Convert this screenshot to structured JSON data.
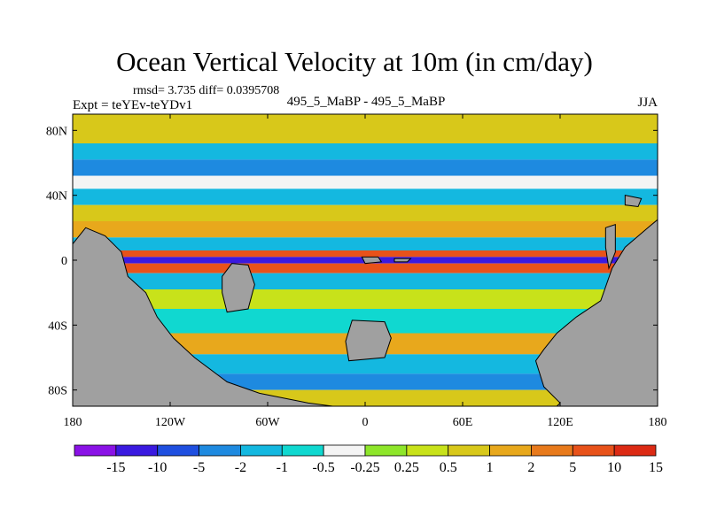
{
  "title": "Ocean Vertical Velocity at 10m (in cm/day)",
  "stats": "rmsd= 3.735 diff= 0.0395708",
  "experiment": "Expt = teYEv-teYDv1",
  "center_label": "495_5_MaBP - 495_5_MaBP",
  "season": "JJA",
  "colors": {
    "land": "#a0a0a0",
    "levels": [
      "#8a12e6",
      "#3a1ae0",
      "#1f4fe0",
      "#1e8ae0",
      "#14b8e0",
      "#10d8d0",
      "#f4f4f4",
      "#8ee62a",
      "#c8e21a",
      "#d8c81a",
      "#e8a81c",
      "#e87a1c",
      "#e8521a",
      "#dc2a14"
    ]
  },
  "chart_data": {
    "type": "heatmap",
    "projection": "cylindrical-equidistant",
    "xlim": [
      -180,
      180
    ],
    "ylim": [
      -90,
      90
    ],
    "x_ticks": [
      {
        "value": -180,
        "label": "180"
      },
      {
        "value": -120,
        "label": "120W"
      },
      {
        "value": -60,
        "label": "60W"
      },
      {
        "value": 0,
        "label": "0"
      },
      {
        "value": 60,
        "label": "60E"
      },
      {
        "value": 120,
        "label": "120E"
      },
      {
        "value": 180,
        "label": "180"
      }
    ],
    "y_ticks": [
      {
        "value": 80,
        "label": "80N"
      },
      {
        "value": 40,
        "label": "40N"
      },
      {
        "value": 0,
        "label": "0"
      },
      {
        "value": -40,
        "label": "40S"
      },
      {
        "value": -80,
        "label": "80S"
      }
    ],
    "colorbar": {
      "levels": [
        "-15",
        "-10",
        "-5",
        "-2",
        "-1",
        "-0.5",
        "-0.25",
        "0.25",
        "0.5",
        "1",
        "2",
        "5",
        "10",
        "15"
      ]
    },
    "bands": [
      {
        "lat": [
          72,
          90
        ],
        "value": 0.7
      },
      {
        "lat": [
          62,
          72
        ],
        "value": -1.5
      },
      {
        "lat": [
          52,
          62
        ],
        "value": -3
      },
      {
        "lat": [
          44,
          52
        ],
        "value": -0.3
      },
      {
        "lat": [
          34,
          44
        ],
        "value": -1.5
      },
      {
        "lat": [
          24,
          34
        ],
        "value": 0.8
      },
      {
        "lat": [
          14,
          24
        ],
        "value": 1.5
      },
      {
        "lat": [
          6,
          14
        ],
        "value": -2
      },
      {
        "lat": [
          2,
          6
        ],
        "value": 6
      },
      {
        "lat": [
          -2,
          2
        ],
        "value": -12
      },
      {
        "lat": [
          -8,
          -2
        ],
        "value": 8
      },
      {
        "lat": [
          -18,
          -8
        ],
        "value": -2
      },
      {
        "lat": [
          -30,
          -18
        ],
        "value": 0.3
      },
      {
        "lat": [
          -45,
          -30
        ],
        "value": -0.7
      },
      {
        "lat": [
          -58,
          -45
        ],
        "value": 1.2
      },
      {
        "lat": [
          -70,
          -58
        ],
        "value": -1.5
      },
      {
        "lat": [
          -80,
          -70
        ],
        "value": -3
      },
      {
        "lat": [
          -90,
          -80
        ],
        "value": 0.5
      }
    ],
    "land": [
      {
        "name": "west-continent",
        "points": [
          [
            -180,
            -90
          ],
          [
            -180,
            10
          ],
          [
            -172,
            20
          ],
          [
            -160,
            15
          ],
          [
            -150,
            5
          ],
          [
            -146,
            -10
          ],
          [
            -135,
            -20
          ],
          [
            -128,
            -35
          ],
          [
            -118,
            -48
          ],
          [
            -105,
            -60
          ],
          [
            -85,
            -75
          ],
          [
            -65,
            -82
          ],
          [
            -35,
            -88
          ],
          [
            -20,
            -90
          ]
        ]
      },
      {
        "name": "east-continent",
        "points": [
          [
            180,
            -90
          ],
          [
            180,
            25
          ],
          [
            174,
            20
          ],
          [
            160,
            8
          ],
          [
            152,
            -5
          ],
          [
            145,
            -25
          ],
          [
            130,
            -35
          ],
          [
            118,
            -45
          ],
          [
            110,
            -55
          ],
          [
            105,
            -62
          ],
          [
            110,
            -78
          ],
          [
            120,
            -88
          ],
          [
            118,
            -90
          ]
        ]
      },
      {
        "name": "interior-island-a",
        "points": [
          [
            -82,
            -2
          ],
          [
            -72,
            -3
          ],
          [
            -68,
            -15
          ],
          [
            -72,
            -30
          ],
          [
            -85,
            -32
          ],
          [
            -88,
            -20
          ],
          [
            -88,
            -10
          ]
        ]
      },
      {
        "name": "interior-island-b",
        "points": [
          [
            -8,
            -37
          ],
          [
            12,
            -38
          ],
          [
            16,
            -48
          ],
          [
            12,
            -60
          ],
          [
            -10,
            -62
          ],
          [
            -12,
            -50
          ]
        ]
      },
      {
        "name": "equatorial-island-a",
        "points": [
          [
            -2,
            2
          ],
          [
            8,
            2
          ],
          [
            10,
            -1
          ],
          [
            0,
            -2
          ]
        ]
      },
      {
        "name": "equatorial-island-b",
        "points": [
          [
            18,
            1
          ],
          [
            28,
            1
          ],
          [
            26,
            -1
          ],
          [
            18,
            -1
          ]
        ]
      },
      {
        "name": "small-island-ne",
        "points": [
          [
            148,
            20
          ],
          [
            154,
            22
          ],
          [
            154,
            5
          ],
          [
            150,
            -5
          ],
          [
            148,
            8
          ]
        ]
      },
      {
        "name": "small-island-far-ne",
        "points": [
          [
            160,
            40
          ],
          [
            170,
            38
          ],
          [
            168,
            33
          ],
          [
            160,
            34
          ]
        ]
      }
    ]
  }
}
